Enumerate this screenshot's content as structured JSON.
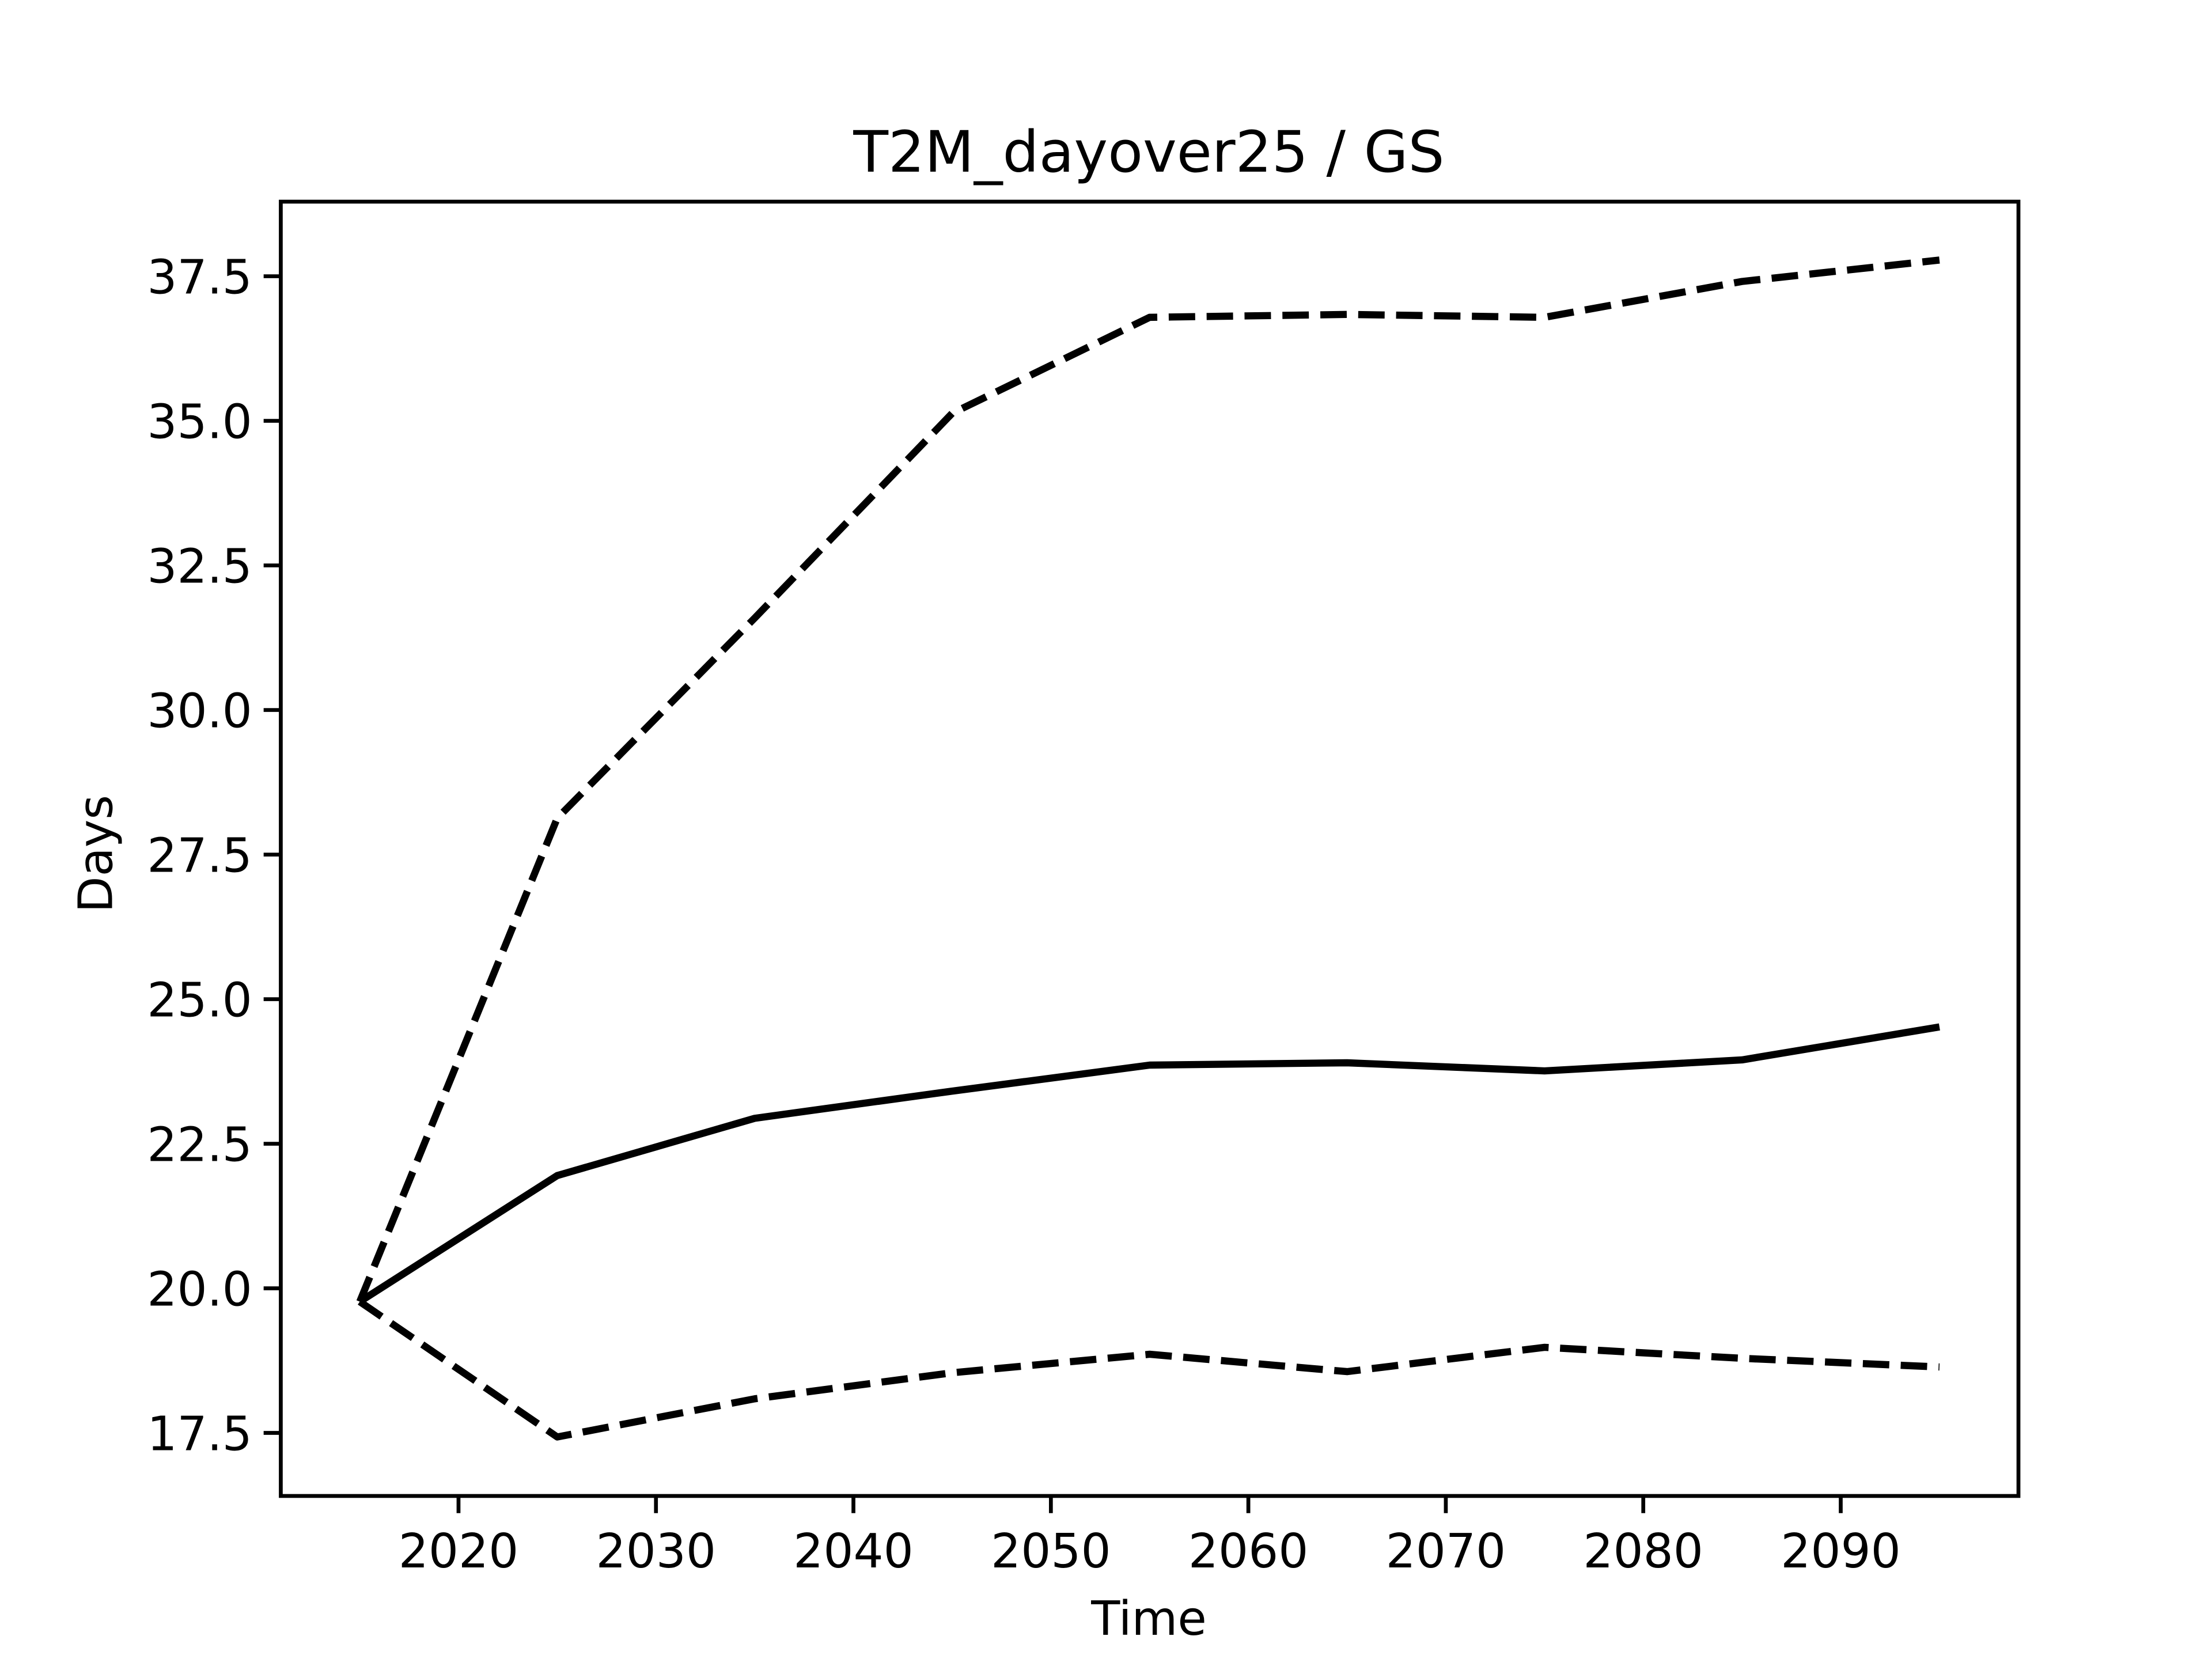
{
  "chart_data": {
    "type": "line",
    "title": "T2M_dayover25 / GS",
    "xlabel": "Time",
    "ylabel": "Days",
    "x": [
      2015,
      2025,
      2035,
      2045,
      2055,
      2065,
      2075,
      2085,
      2095
    ],
    "series": [
      {
        "color": "#000000",
        "linestyle": "solid",
        "values": [
          19.77,
          21.95,
          22.94,
          23.41,
          23.86,
          23.9,
          23.76,
          23.95,
          24.52
        ]
      },
      {
        "color": "#000000",
        "linestyle": "dashed",
        "values": [
          19.77,
          28.13,
          31.59,
          35.13,
          36.79,
          36.84,
          36.79,
          37.41,
          37.78
        ]
      },
      {
        "color": "#000000",
        "linestyle": "dashed",
        "values": [
          19.77,
          17.43,
          18.09,
          18.54,
          18.86,
          18.56,
          18.98,
          18.79,
          18.64
        ]
      }
    ],
    "xlim": [
      2011,
      2099
    ],
    "xticks": [
      2020,
      2030,
      2040,
      2050,
      2060,
      2070,
      2080,
      2090
    ],
    "ylim": [
      16.41,
      38.79
    ],
    "yticks": [
      17.5,
      {
        "value": 20,
        "label": "20.0"
      },
      22.5,
      {
        "value": 25,
        "label": "25.0"
      },
      27.5,
      {
        "value": 30,
        "label": "30.0"
      },
      32.5,
      {
        "value": 35,
        "label": "35.0"
      },
      37.5
    ],
    "grid": false
  }
}
